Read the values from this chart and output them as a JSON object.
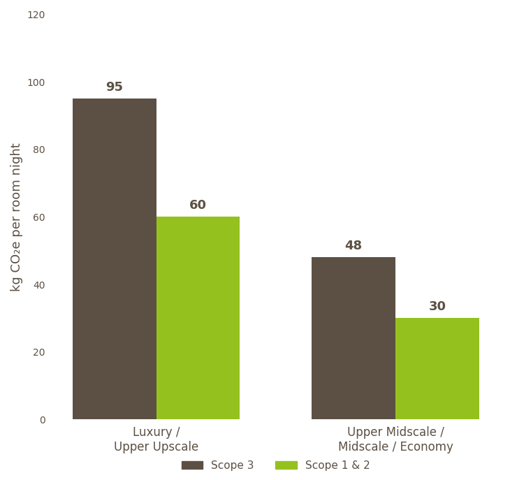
{
  "categories": [
    "Luxury /\nUpper Upscale",
    "Upper Midscale /\nMidscale / Economy"
  ],
  "green_vals": [
    60,
    30
  ],
  "brown_vals": [
    95,
    48
  ],
  "bar_color_green": "#95C11F",
  "bar_color_brown": "#5C5044",
  "background_color": "#ffffff",
  "ylabel": "kg CO₂e per room night",
  "ylim": [
    0,
    120
  ],
  "bar_width": 0.35,
  "label_fontsize": 13,
  "tick_fontsize": 12,
  "value_labels_green": [
    "60",
    "30"
  ],
  "value_labels_brown": [
    "95",
    "48"
  ],
  "legend_labels": [
    "Scope 1 & 2 (green)",
    "Scope 3 (brown)"
  ],
  "green_label": "Scope 1 & 2",
  "brown_label": "Scope 3"
}
